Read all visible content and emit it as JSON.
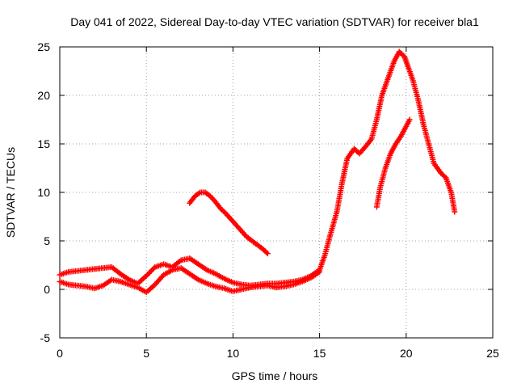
{
  "chart_data": {
    "type": "scatter",
    "title": "Day 041 of 2022, Sidereal Day-to-day VTEC variation (SDTVAR) for receiver bla1",
    "xlabel": "GPS time / hours",
    "ylabel": "SDTVAR / TECUs",
    "xlim": [
      0,
      25
    ],
    "ylim": [
      -5,
      25
    ],
    "xticks": [
      0,
      5,
      10,
      15,
      20,
      25
    ],
    "yticks": [
      -5,
      0,
      5,
      10,
      15,
      20,
      25
    ],
    "grid": true,
    "marker": "plus",
    "series": [
      {
        "name": "main-band",
        "color": "#ff0000",
        "x": [
          0,
          0.5,
          1,
          1.5,
          2,
          2.5,
          3,
          3.5,
          4,
          4.5,
          5,
          5.5,
          6,
          6.5,
          7,
          7.5,
          8,
          8.5,
          9,
          9.5,
          10,
          10.5,
          11,
          11.5,
          12,
          12.5,
          13,
          13.5,
          14,
          14.5,
          15,
          15.3,
          15.6,
          16,
          16.3,
          16.6,
          17,
          17.3,
          17.6,
          18,
          18.3,
          18.6,
          19,
          19.3,
          19.6,
          19.9,
          20.1,
          20.4,
          20.7,
          21,
          21.3,
          21.6,
          22,
          22.3,
          22.6,
          22.8
        ],
        "y": [
          1.5,
          1.8,
          1.9,
          2.0,
          2.1,
          2.2,
          2.3,
          1.6,
          1.0,
          0.6,
          1.4,
          2.3,
          2.6,
          2.3,
          3.0,
          3.2,
          2.6,
          2.0,
          1.6,
          1.1,
          0.7,
          0.5,
          0.4,
          0.5,
          0.6,
          0.6,
          0.7,
          0.8,
          1.0,
          1.4,
          2.0,
          3.5,
          5.5,
          8.0,
          11.0,
          13.5,
          14.5,
          14.0,
          14.6,
          15.5,
          17.5,
          20.0,
          22.0,
          23.5,
          24.5,
          24.0,
          23.0,
          21.5,
          19.5,
          17.0,
          15.0,
          13.0,
          12.0,
          11.5,
          10.0,
          8.0
        ]
      },
      {
        "name": "lower-band",
        "color": "#ff0000",
        "x": [
          0,
          0.5,
          1,
          1.5,
          2,
          2.5,
          3,
          3.5,
          4,
          4.5,
          5,
          5.5,
          6,
          6.5,
          7,
          7.5,
          8,
          8.5,
          9,
          9.5,
          10,
          10.5,
          11,
          11.5,
          12,
          12.5,
          13,
          13.5,
          14,
          14.5,
          15
        ],
        "y": [
          0.8,
          0.5,
          0.4,
          0.3,
          0.1,
          0.4,
          1.0,
          0.8,
          0.5,
          0.2,
          -0.3,
          0.5,
          1.5,
          2.0,
          2.2,
          1.6,
          1.0,
          0.6,
          0.3,
          0.1,
          -0.2,
          0.0,
          0.2,
          0.3,
          0.4,
          0.2,
          0.3,
          0.5,
          0.8,
          1.2,
          1.8
        ]
      },
      {
        "name": "isolated-arc",
        "color": "#ff0000",
        "x": [
          7.5,
          7.8,
          8.1,
          8.4,
          8.7,
          9.0,
          9.3,
          9.6,
          9.9,
          10.2,
          10.5,
          10.8,
          11.1,
          11.4,
          11.7,
          12.0
        ],
        "y": [
          8.9,
          9.6,
          10.0,
          10.0,
          9.6,
          9.0,
          8.3,
          7.8,
          7.2,
          6.6,
          6.0,
          5.4,
          5.0,
          4.6,
          4.2,
          3.7
        ]
      },
      {
        "name": "secondary-rise",
        "color": "#ff0000",
        "x": [
          18.3,
          18.5,
          18.8,
          19.1,
          19.4,
          19.7,
          20.0,
          20.2
        ],
        "y": [
          8.5,
          10.5,
          12.5,
          14.0,
          15.0,
          15.8,
          16.8,
          17.5
        ]
      }
    ]
  }
}
